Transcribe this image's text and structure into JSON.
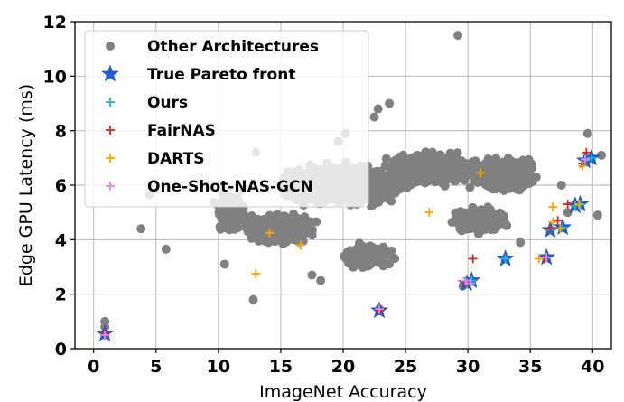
{
  "chart_data": {
    "type": "scatter",
    "xlabel": "ImageNet Accuracy",
    "ylabel": "Edge GPU Latency (ms)",
    "xlim": [
      -1.5,
      41.5
    ],
    "ylim": [
      0,
      12
    ],
    "xticks": [
      0,
      5,
      10,
      15,
      20,
      25,
      30,
      35,
      40
    ],
    "yticks": [
      0,
      2,
      4,
      6,
      8,
      10,
      12
    ],
    "grid": true,
    "legend_position": "top-left",
    "series": [
      {
        "name": "Other Architectures",
        "marker": "circle",
        "color": "#808080",
        "points": [
          [
            0.9,
            0.5
          ],
          [
            0.9,
            0.8
          ],
          [
            0.9,
            1.0
          ],
          [
            3.8,
            4.4
          ],
          [
            4.5,
            5.65
          ],
          [
            5.8,
            3.65
          ],
          [
            10.5,
            3.1
          ],
          [
            12.8,
            1.8
          ],
          [
            13.0,
            7.2
          ],
          [
            17.5,
            2.7
          ],
          [
            18.2,
            2.5
          ],
          [
            19.6,
            7.6
          ],
          [
            20.2,
            7.9
          ],
          [
            22.5,
            8.5
          ],
          [
            22.8,
            8.8
          ],
          [
            22.9,
            1.45
          ],
          [
            23.7,
            9.0
          ],
          [
            29.2,
            11.5
          ],
          [
            29.6,
            2.3
          ],
          [
            34.2,
            3.9
          ],
          [
            39.6,
            7.9
          ],
          [
            40.4,
            4.9
          ],
          [
            40.7,
            7.1
          ],
          [
            38.0,
            5.0
          ],
          [
            37.5,
            6.0
          ]
        ],
        "clouds": [
          {
            "center": [
              20,
              6.0
            ],
            "spread": [
              6.0,
              0.95
            ],
            "count": 1400
          },
          {
            "center": [
              27,
              6.6
            ],
            "spread": [
              4.5,
              0.75
            ],
            "count": 900
          },
          {
            "center": [
              33,
              6.4
            ],
            "spread": [
              3.0,
              0.8
            ],
            "count": 500
          },
          {
            "center": [
              15,
              4.4
            ],
            "spread": [
              3.5,
              0.7
            ],
            "count": 500
          },
          {
            "center": [
              22,
              3.4
            ],
            "spread": [
              2.5,
              0.55
            ],
            "count": 350
          },
          {
            "center": [
              31,
              4.7
            ],
            "spread": [
              3.0,
              0.6
            ],
            "count": 400
          },
          {
            "center": [
              11,
              5.0
            ],
            "spread": [
              1.5,
              0.9
            ],
            "count": 200
          }
        ]
      },
      {
        "name": "True Pareto front",
        "marker": "star",
        "color": "#1f5fd6",
        "points": [
          [
            0.9,
            0.55
          ],
          [
            22.9,
            1.4
          ],
          [
            29.9,
            2.4
          ],
          [
            30.3,
            2.5
          ],
          [
            33.0,
            3.3
          ],
          [
            36.3,
            3.35
          ],
          [
            36.6,
            4.35
          ],
          [
            37.6,
            4.45
          ],
          [
            38.6,
            5.25
          ],
          [
            39.0,
            5.3
          ],
          [
            39.4,
            6.9
          ],
          [
            39.9,
            7.0
          ]
        ]
      },
      {
        "name": "Ours",
        "marker": "plus",
        "color": "#17becf",
        "points": [
          [
            0.9,
            0.55
          ],
          [
            22.9,
            1.4
          ],
          [
            29.9,
            2.4
          ],
          [
            30.3,
            2.5
          ],
          [
            33.0,
            3.3
          ],
          [
            36.3,
            3.35
          ],
          [
            36.6,
            4.35
          ],
          [
            37.6,
            4.45
          ],
          [
            38.6,
            5.25
          ],
          [
            39.0,
            5.3
          ],
          [
            39.4,
            6.9
          ],
          [
            39.9,
            7.0
          ]
        ]
      },
      {
        "name": "FairNAS",
        "marker": "plus",
        "color": "#d62728",
        "points": [
          [
            0.9,
            0.55
          ],
          [
            22.9,
            1.4
          ],
          [
            29.8,
            2.4
          ],
          [
            30.4,
            3.3
          ],
          [
            36.1,
            3.3
          ],
          [
            36.6,
            4.4
          ],
          [
            37.2,
            4.7
          ],
          [
            38.0,
            5.3
          ],
          [
            38.9,
            5.3
          ],
          [
            39.2,
            6.8
          ],
          [
            39.5,
            7.2
          ]
        ]
      },
      {
        "name": "DARTS",
        "marker": "plus",
        "color": "#ffa500",
        "points": [
          [
            13.0,
            2.75
          ],
          [
            14.1,
            4.25
          ],
          [
            16.6,
            3.8
          ],
          [
            26.9,
            5.0
          ],
          [
            31.0,
            6.45
          ],
          [
            35.7,
            3.3
          ],
          [
            36.8,
            4.65
          ],
          [
            36.8,
            5.2
          ],
          [
            37.4,
            4.4
          ],
          [
            38.9,
            5.3
          ],
          [
            39.2,
            6.7
          ]
        ]
      },
      {
        "name": "One-Shot-NAS-GCN",
        "marker": "plus",
        "color": "#ee82ee",
        "points": [
          [
            0.9,
            0.5
          ],
          [
            22.9,
            1.45
          ],
          [
            29.8,
            2.5
          ],
          [
            30.2,
            2.4
          ],
          [
            36.3,
            3.35
          ],
          [
            39.4,
            6.95
          ]
        ]
      }
    ]
  }
}
